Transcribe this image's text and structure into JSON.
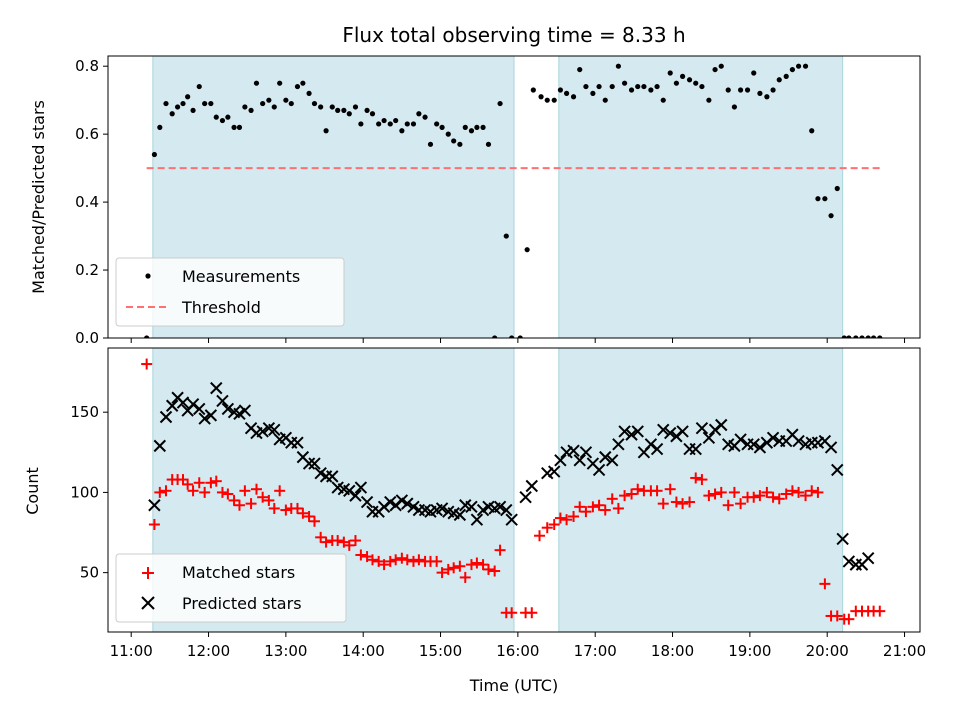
{
  "chart_data": [
    {
      "type": "scatter",
      "title": "Flux total observing time = 8.33 h",
      "xlabel": "",
      "ylabel": "Matched/Predicted stars",
      "xlim": [
        10.7,
        21.2
      ],
      "ylim": [
        0.0,
        0.83
      ],
      "yticks": [
        0.0,
        0.2,
        0.4,
        0.6,
        0.8
      ],
      "ytick_labels": [
        "0.0",
        "0.2",
        "0.4",
        "0.6",
        "0.8"
      ],
      "shaded_intervals": [
        [
          11.28,
          15.95
        ],
        [
          16.53,
          20.2
        ]
      ],
      "shade_color": "#d4eaf0",
      "legend": {
        "location": "lower-left",
        "entries": [
          "Measurements",
          "Threshold"
        ]
      },
      "threshold": {
        "name": "Threshold",
        "value": 0.5,
        "x_range": [
          11.2,
          20.7
        ],
        "color": "#ff7070",
        "style": "dashed"
      },
      "series": [
        {
          "name": "Measurements",
          "marker": "dot",
          "color": "#000000",
          "x": [
            11.2,
            11.3,
            11.37,
            11.45,
            11.53,
            11.6,
            11.67,
            11.73,
            11.8,
            11.88,
            11.95,
            12.03,
            12.1,
            12.18,
            12.25,
            12.33,
            12.4,
            12.47,
            12.55,
            12.62,
            12.7,
            12.78,
            12.85,
            12.92,
            13.0,
            13.07,
            13.15,
            13.22,
            13.3,
            13.37,
            13.45,
            13.52,
            13.6,
            13.67,
            13.75,
            13.82,
            13.9,
            13.97,
            14.05,
            14.12,
            14.2,
            14.27,
            14.35,
            14.42,
            14.5,
            14.57,
            14.65,
            14.72,
            14.8,
            14.87,
            14.95,
            15.02,
            15.1,
            15.17,
            15.25,
            15.32,
            15.4,
            15.47,
            15.55,
            15.62,
            15.7,
            15.77,
            15.85,
            15.92,
            16.03,
            16.12,
            16.2,
            16.3,
            16.38,
            16.47,
            16.55,
            16.63,
            16.72,
            16.8,
            16.88,
            16.97,
            17.05,
            17.13,
            17.22,
            17.3,
            17.38,
            17.47,
            17.55,
            17.63,
            17.72,
            17.8,
            17.88,
            17.97,
            18.05,
            18.13,
            18.22,
            18.3,
            18.38,
            18.47,
            18.55,
            18.63,
            18.72,
            18.8,
            18.88,
            18.97,
            19.05,
            19.13,
            19.22,
            19.3,
            19.38,
            19.47,
            19.55,
            19.63,
            19.72,
            19.8,
            19.88,
            19.97,
            20.05,
            20.13,
            20.22,
            20.28,
            20.37,
            20.45,
            20.53,
            20.6,
            20.68
          ],
          "y": [
            0.0,
            0.54,
            0.62,
            0.69,
            0.66,
            0.68,
            0.69,
            0.71,
            0.67,
            0.74,
            0.69,
            0.69,
            0.65,
            0.64,
            0.65,
            0.62,
            0.62,
            0.68,
            0.67,
            0.75,
            0.69,
            0.7,
            0.68,
            0.75,
            0.7,
            0.69,
            0.74,
            0.75,
            0.72,
            0.69,
            0.68,
            0.61,
            0.68,
            0.67,
            0.67,
            0.66,
            0.68,
            0.63,
            0.67,
            0.66,
            0.63,
            0.64,
            0.63,
            0.64,
            0.61,
            0.63,
            0.63,
            0.66,
            0.65,
            0.57,
            0.63,
            0.62,
            0.6,
            0.58,
            0.57,
            0.62,
            0.61,
            0.62,
            0.62,
            0.57,
            0.0,
            0.69,
            0.3,
            0.0,
            0.0,
            0.26,
            0.73,
            0.71,
            0.7,
            0.7,
            0.73,
            0.72,
            0.71,
            0.79,
            0.74,
            0.72,
            0.74,
            0.7,
            0.74,
            0.8,
            0.75,
            0.73,
            0.74,
            0.74,
            0.73,
            0.74,
            0.7,
            0.78,
            0.75,
            0.77,
            0.76,
            0.75,
            0.74,
            0.7,
            0.79,
            0.8,
            0.73,
            0.68,
            0.73,
            0.73,
            0.78,
            0.72,
            0.71,
            0.73,
            0.76,
            0.77,
            0.79,
            0.8,
            0.8,
            0.61,
            0.41,
            0.41,
            0.36,
            0.44,
            0.0,
            0.0,
            0.0,
            0.0,
            0.0,
            0.0,
            0.0
          ],
          "y_note_count": 121
        }
      ]
    },
    {
      "type": "scatter",
      "title": "",
      "xlabel": "Time (UTC)",
      "ylabel": "Count",
      "xlim": [
        10.7,
        21.2
      ],
      "ylim": [
        13,
        190
      ],
      "xticks": [
        11,
        12,
        13,
        14,
        15,
        16,
        17,
        18,
        19,
        20,
        21
      ],
      "xtick_labels": [
        "11:00",
        "12:00",
        "13:00",
        "14:00",
        "15:00",
        "16:00",
        "17:00",
        "18:00",
        "19:00",
        "20:00",
        "21:00"
      ],
      "yticks": [
        50,
        100,
        150
      ],
      "ytick_labels": [
        "50",
        "100",
        "150"
      ],
      "shaded_intervals": [
        [
          11.28,
          15.95
        ],
        [
          16.53,
          20.2
        ]
      ],
      "shade_color": "#d4eaf0",
      "legend": {
        "location": "lower-left",
        "entries": [
          "Matched stars",
          "Predicted stars"
        ]
      },
      "series": [
        {
          "name": "Matched stars",
          "marker": "plus",
          "color": "#ff0000",
          "x": [
            11.2,
            11.3,
            11.37,
            11.45,
            11.53,
            11.6,
            11.67,
            11.73,
            11.8,
            11.88,
            11.95,
            12.03,
            12.1,
            12.18,
            12.25,
            12.33,
            12.4,
            12.47,
            12.55,
            12.62,
            12.7,
            12.78,
            12.85,
            12.92,
            13.0,
            13.07,
            13.15,
            13.22,
            13.3,
            13.37,
            13.45,
            13.52,
            13.6,
            13.67,
            13.75,
            13.82,
            13.9,
            13.97,
            14.05,
            14.12,
            14.2,
            14.27,
            14.35,
            14.42,
            14.5,
            14.57,
            14.65,
            14.72,
            14.8,
            14.87,
            14.95,
            15.02,
            15.1,
            15.17,
            15.25,
            15.32,
            15.4,
            15.47,
            15.55,
            15.62,
            15.7,
            15.77,
            15.85,
            15.92,
            16.1,
            16.18,
            16.28,
            16.38,
            16.47,
            16.55,
            16.63,
            16.72,
            16.8,
            16.88,
            16.97,
            17.05,
            17.13,
            17.22,
            17.3,
            17.38,
            17.47,
            17.55,
            17.63,
            17.72,
            17.8,
            17.88,
            17.97,
            18.05,
            18.13,
            18.22,
            18.3,
            18.38,
            18.47,
            18.55,
            18.63,
            18.72,
            18.8,
            18.88,
            18.97,
            19.05,
            19.13,
            19.22,
            19.3,
            19.38,
            19.47,
            19.55,
            19.63,
            19.72,
            19.8,
            19.88,
            19.97,
            20.05,
            20.13,
            20.22,
            20.28,
            20.37,
            20.45,
            20.53,
            20.6,
            20.68
          ],
          "y": [
            180,
            80,
            100,
            101,
            108,
            108,
            108,
            105,
            101,
            106,
            100,
            106,
            107,
            100,
            99,
            95,
            92,
            101,
            93,
            102,
            97,
            95,
            90,
            101,
            89,
            90,
            90,
            87,
            85,
            82,
            72,
            69,
            70,
            70,
            69,
            67,
            70,
            61,
            60,
            58,
            57,
            55,
            57,
            58,
            59,
            58,
            57,
            58,
            57,
            57,
            57,
            50,
            52,
            53,
            54,
            47,
            55,
            56,
            55,
            52,
            51,
            64,
            25,
            25,
            25,
            25,
            73,
            78,
            80,
            84,
            83,
            85,
            91,
            88,
            91,
            92,
            89,
            96,
            90,
            98,
            99,
            102,
            101,
            101,
            101,
            93,
            102,
            94,
            93,
            94,
            109,
            108,
            98,
            99,
            100,
            92,
            100,
            93,
            97,
            97,
            98,
            100,
            97,
            96,
            99,
            101,
            100,
            98,
            101,
            100,
            43,
            23,
            23,
            21,
            21,
            26,
            26,
            26,
            26,
            26
          ],
          "y_note_count": 120
        },
        {
          "name": "Predicted stars",
          "marker": "x",
          "color": "#000000",
          "x": [
            11.3,
            11.37,
            11.45,
            11.53,
            11.6,
            11.67,
            11.73,
            11.8,
            11.88,
            11.95,
            12.03,
            12.1,
            12.18,
            12.25,
            12.33,
            12.4,
            12.47,
            12.55,
            12.62,
            12.7,
            12.78,
            12.85,
            12.92,
            13.0,
            13.07,
            13.15,
            13.22,
            13.3,
            13.37,
            13.45,
            13.52,
            13.6,
            13.67,
            13.75,
            13.82,
            13.9,
            13.97,
            14.05,
            14.12,
            14.2,
            14.27,
            14.35,
            14.42,
            14.5,
            14.57,
            14.65,
            14.72,
            14.8,
            14.87,
            14.95,
            15.02,
            15.1,
            15.17,
            15.25,
            15.32,
            15.4,
            15.47,
            15.55,
            15.62,
            15.7,
            15.77,
            15.85,
            15.92,
            16.1,
            16.18,
            16.38,
            16.47,
            16.55,
            16.63,
            16.72,
            16.8,
            16.88,
            16.97,
            17.05,
            17.13,
            17.22,
            17.3,
            17.38,
            17.47,
            17.55,
            17.63,
            17.72,
            17.8,
            17.88,
            17.97,
            18.05,
            18.13,
            18.22,
            18.3,
            18.38,
            18.47,
            18.55,
            18.63,
            18.72,
            18.8,
            18.88,
            18.97,
            19.05,
            19.13,
            19.22,
            19.3,
            19.38,
            19.47,
            19.55,
            19.63,
            19.72,
            19.8,
            19.88,
            19.97,
            20.05,
            20.13,
            20.2,
            20.28,
            20.37,
            20.45,
            20.53
          ],
          "y": [
            92,
            129,
            147,
            154,
            159,
            156,
            151,
            155,
            152,
            146,
            148,
            165,
            157,
            152,
            150,
            149,
            151,
            140,
            137,
            138,
            140,
            139,
            133,
            134,
            131,
            131,
            122,
            118,
            118,
            112,
            110,
            110,
            103,
            102,
            101,
            98,
            103,
            94,
            88,
            88,
            91,
            94,
            92,
            95,
            93,
            91,
            89,
            89,
            88,
            89,
            90,
            88,
            87,
            86,
            92,
            91,
            83,
            89,
            91,
            90,
            91,
            89,
            83,
            97,
            104,
            112,
            113,
            120,
            125,
            126,
            120,
            125,
            118,
            114,
            122,
            120,
            130,
            138,
            136,
            138,
            125,
            130,
            127,
            139,
            137,
            135,
            138,
            127,
            127,
            140,
            134,
            139,
            142,
            130,
            129,
            133,
            130,
            130,
            128,
            131,
            134,
            132,
            132,
            136,
            132,
            130,
            131,
            131,
            132,
            128,
            114,
            71,
            57,
            55,
            55,
            59
          ],
          "y_note_count": 116
        }
      ]
    }
  ]
}
